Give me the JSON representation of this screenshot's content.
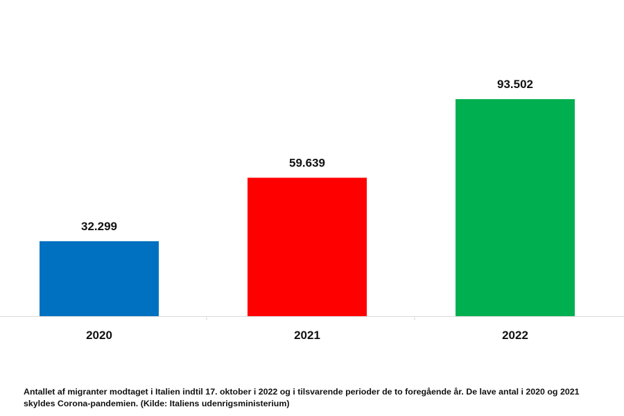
{
  "chart_data": {
    "type": "bar",
    "categories": [
      "2020",
      "2021",
      "2022"
    ],
    "values": [
      32299,
      59639,
      93502
    ],
    "value_labels": [
      "32.299",
      "59.639",
      "93.502"
    ],
    "colors": [
      "#0070C0",
      "#FF0000",
      "#00B050"
    ],
    "title": "",
    "xlabel": "",
    "ylabel": "",
    "ylim": [
      0,
      100000
    ],
    "grid": false,
    "legend": "none"
  },
  "caption": "Antallet af migranter modtaget i Italien indtil 17. oktober i 2022 og i tilsvarende perioder de to foregående år. De lave antal i 2020 og 2021 skyldes Corona-pandemien. (Kilde: Italiens udenrigsministerium)"
}
